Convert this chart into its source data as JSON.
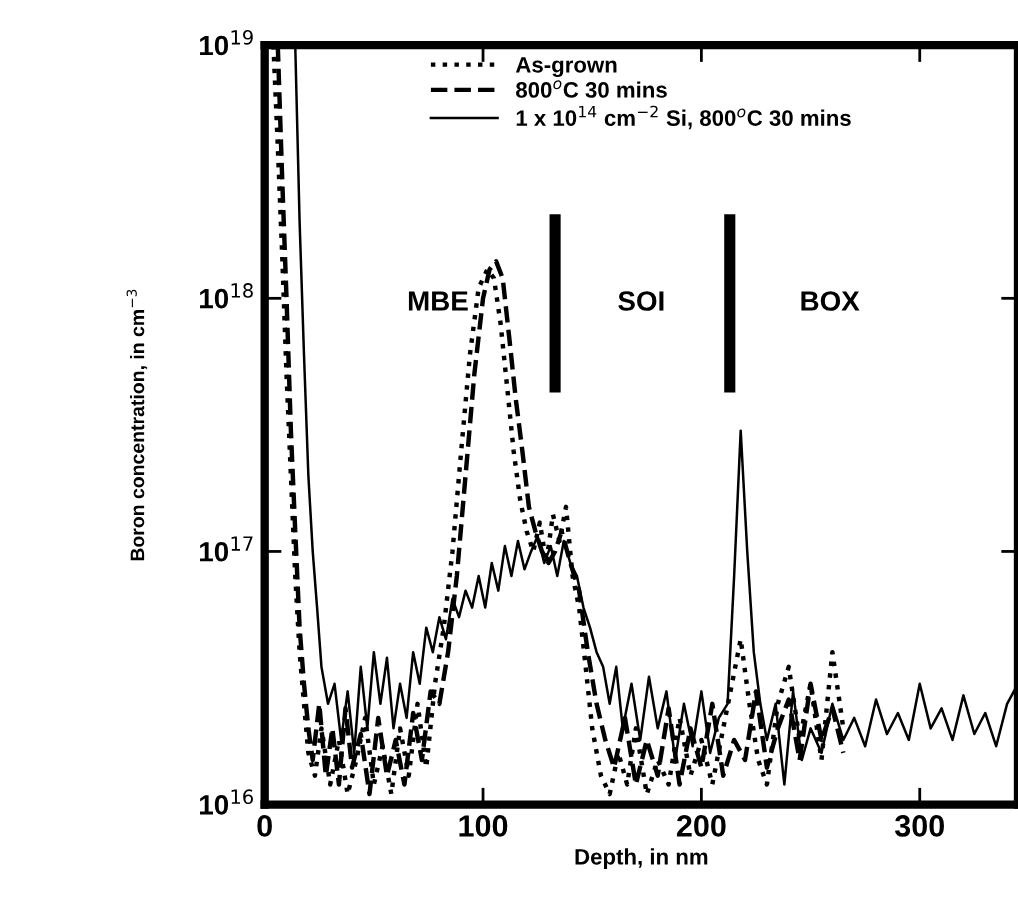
{
  "chart_data": {
    "type": "line",
    "xlabel": "Depth, in nm",
    "ylabel": "Boron concentration, in cm$^{−3}$",
    "log": "y",
    "xlim": [
      0,
      345
    ],
    "ylim": [
      1e+16,
      1e+19
    ],
    "xticks": [
      0,
      100,
      200,
      300
    ],
    "yticks": [
      {
        "value": 1e+16,
        "label": "10$^{16}$"
      },
      {
        "value": 1e+17,
        "label": "10$^{17}$"
      },
      {
        "value": 1e+18,
        "label": "10$^{18}$"
      },
      {
        "value": 1e+19,
        "label": "10$^{19}$"
      }
    ],
    "grid": false,
    "legend": "top",
    "marker": "none",
    "series": [
      {
        "name": "As-grown",
        "color": "#000000",
        "line_style": "dotted",
        "x": [
          4,
          6,
          8,
          10,
          12,
          14,
          16,
          18,
          20,
          23,
          26,
          30,
          34,
          38,
          42,
          46,
          50,
          54,
          58,
          62,
          66,
          70,
          74,
          78,
          82,
          86,
          90,
          94,
          98,
          102,
          105,
          108,
          111,
          114,
          117,
          120,
          123,
          126,
          129,
          132,
          135,
          138,
          141,
          144,
          147,
          150,
          154,
          158,
          162,
          166,
          170,
          175,
          180,
          185,
          190,
          195,
          200,
          205,
          210,
          214,
          218,
          222,
          226,
          230,
          235,
          240,
          245,
          250,
          255,
          260,
          265
        ],
        "values": [
          1e+19,
          4e+18,
          1.5e+18,
          5e+17,
          2e+17,
          8e+16,
          4e+16,
          2.5e+16,
          1.6e+16,
          1.3e+16,
          2e+16,
          1.2e+16,
          1.8e+16,
          1.1e+16,
          1.5e+16,
          2.2e+16,
          1.2e+16,
          1.7e+16,
          1.1e+16,
          2e+16,
          1.3e+16,
          2.5e+16,
          1.4e+16,
          3e+16,
          5e+16,
          1e+17,
          2.5e+17,
          6e+17,
          1.1e+18,
          1.3e+18,
          1.2e+18,
          8e+17,
          4.5e+17,
          2.5e+17,
          1.6e+17,
          1.2e+17,
          1e+17,
          1.3e+17,
          9e+16,
          1.4e+17,
          1.1e+17,
          1.5e+17,
          8e+16,
          6e+16,
          3.5e+16,
          2e+16,
          1.3e+16,
          1.1e+16,
          1.6e+16,
          1.2e+16,
          2e+16,
          1.1e+16,
          1.5e+16,
          1.2e+16,
          2.2e+16,
          1.3e+16,
          1.8e+16,
          1.2e+16,
          2e+16,
          3e+16,
          4.5e+16,
          2.5e+16,
          1.5e+16,
          1.2e+16,
          2.5e+16,
          3.5e+16,
          1.8e+16,
          3e+16,
          1.5e+16,
          4e+16,
          2e+16
        ]
      },
      {
        "name": "800$^{o}$C 30 mins",
        "color": "#000000",
        "line_style": "dashed",
        "x": [
          6,
          8,
          10,
          12,
          14,
          16,
          18,
          20,
          22,
          25,
          28,
          31,
          34,
          37,
          40,
          44,
          48,
          52,
          56,
          60,
          64,
          68,
          72,
          76,
          80,
          84,
          88,
          92,
          96,
          100,
          103,
          106,
          109,
          112,
          115,
          118,
          121,
          124,
          127,
          130,
          133,
          136,
          140,
          144,
          148,
          152,
          156,
          160,
          165,
          170,
          175,
          180,
          185,
          190,
          195,
          200,
          205,
          210,
          215,
          220,
          225,
          230,
          235,
          240,
          245,
          250,
          255,
          260,
          265
        ],
        "values": [
          1e+19,
          3e+18,
          1e+18,
          3e+17,
          1.2e+17,
          5e+16,
          3e+16,
          2e+16,
          1.5e+16,
          2.5e+16,
          1.3e+16,
          2e+16,
          1.2e+16,
          2.4e+16,
          1.4e+16,
          1.9e+16,
          1.1e+16,
          2.2e+16,
          1.3e+16,
          1.8e+16,
          1.2e+16,
          2.3e+16,
          1.5e+16,
          2.8e+16,
          2.5e+16,
          4e+16,
          8e+16,
          2e+17,
          5e+17,
          1e+18,
          1.3e+18,
          1.4e+18,
          1.2e+18,
          7e+17,
          4e+17,
          2.5e+17,
          1.5e+17,
          1.2e+17,
          1e+17,
          9e+16,
          1e+17,
          1.2e+17,
          9e+16,
          7e+16,
          4e+16,
          2.5e+16,
          1.8e+16,
          1.4e+16,
          2.2e+16,
          1.2e+16,
          1.8e+16,
          1.3e+16,
          2.4e+16,
          1.2e+16,
          2e+16,
          1.4e+16,
          2.5e+16,
          1.3e+16,
          1.8e+16,
          1.5e+16,
          2.8e+16,
          1.4e+16,
          2e+16,
          2.6e+16,
          1.5e+16,
          3e+16,
          1.8e+16,
          2.4e+16,
          1.6e+16
        ]
      },
      {
        "name": "1 x 10$^{14}$ cm$^{−2}$ Si, 800$^{o}$C 30 mins",
        "color": "#000000",
        "line_style": "solid",
        "x": [
          14,
          16,
          18,
          20,
          22,
          24,
          26,
          29,
          32,
          35,
          38,
          41,
          44,
          47,
          50,
          53,
          56,
          59,
          62,
          65,
          68,
          71,
          74,
          77,
          80,
          83,
          86,
          89,
          92,
          95,
          98,
          101,
          104,
          107,
          110,
          113,
          116,
          119,
          122,
          125,
          128,
          131,
          134,
          137,
          140,
          143,
          146,
          149,
          152,
          155,
          158,
          161,
          164,
          168,
          172,
          176,
          180,
          184,
          188,
          192,
          196,
          200,
          204,
          208,
          212,
          215,
          218,
          221,
          224,
          227,
          230,
          234,
          238,
          242,
          246,
          250,
          255,
          260,
          265,
          270,
          275,
          280,
          285,
          290,
          295,
          300,
          305,
          310,
          315,
          320,
          325,
          330,
          335,
          340,
          345
        ],
        "values": [
          1e+19,
          2e+18,
          6e+17,
          2e+17,
          1e+17,
          6e+16,
          3.5e+16,
          2.5e+16,
          3e+16,
          1.8e+16,
          2.8e+16,
          1.6e+16,
          3.5e+16,
          2e+16,
          4e+16,
          2.5e+16,
          3.8e+16,
          2e+16,
          3e+16,
          2.2e+16,
          4e+16,
          3e+16,
          5e+16,
          4e+16,
          5.5e+16,
          4.5e+16,
          6.5e+16,
          5.5e+16,
          7e+16,
          6e+16,
          8e+16,
          6e+16,
          9e+16,
          7e+16,
          1.05e+17,
          8e+16,
          1.1e+17,
          8.5e+16,
          1e+17,
          1.15e+17,
          9e+16,
          1.05e+17,
          8e+16,
          1.1e+17,
          9e+16,
          8e+16,
          6e+16,
          5e+16,
          4e+16,
          3.5e+16,
          2.5e+16,
          3.5e+16,
          2e+16,
          3e+16,
          1.8e+16,
          3.2e+16,
          2e+16,
          2.8e+16,
          1.5e+16,
          2.5e+16,
          1.7e+16,
          2.8e+16,
          1.6e+16,
          2.2e+16,
          2.5e+16,
          8e+16,
          3e+17,
          1e+17,
          4e+16,
          2.5e+16,
          1.8e+16,
          2.5e+16,
          1.2e+16,
          2.8e+16,
          1.5e+16,
          2e+16,
          1.6e+16,
          2.5e+16,
          1.8e+16,
          2.2e+16,
          1.7e+16,
          2.6e+16,
          1.9e+16,
          2.3e+16,
          1.8e+16,
          3e+16,
          2e+16,
          2.4e+16,
          1.8e+16,
          2.7e+16,
          1.9e+16,
          2.3e+16,
          1.7e+16,
          2.5e+16,
          3e+16
        ]
      }
    ],
    "ref_lines": [
      {
        "axis": "x",
        "value": 133,
        "color": "#000000"
      },
      {
        "axis": "x",
        "value": 213,
        "color": "#000000"
      }
    ],
    "annotations": [
      "MBE",
      "SOI",
      "BOX"
    ]
  }
}
